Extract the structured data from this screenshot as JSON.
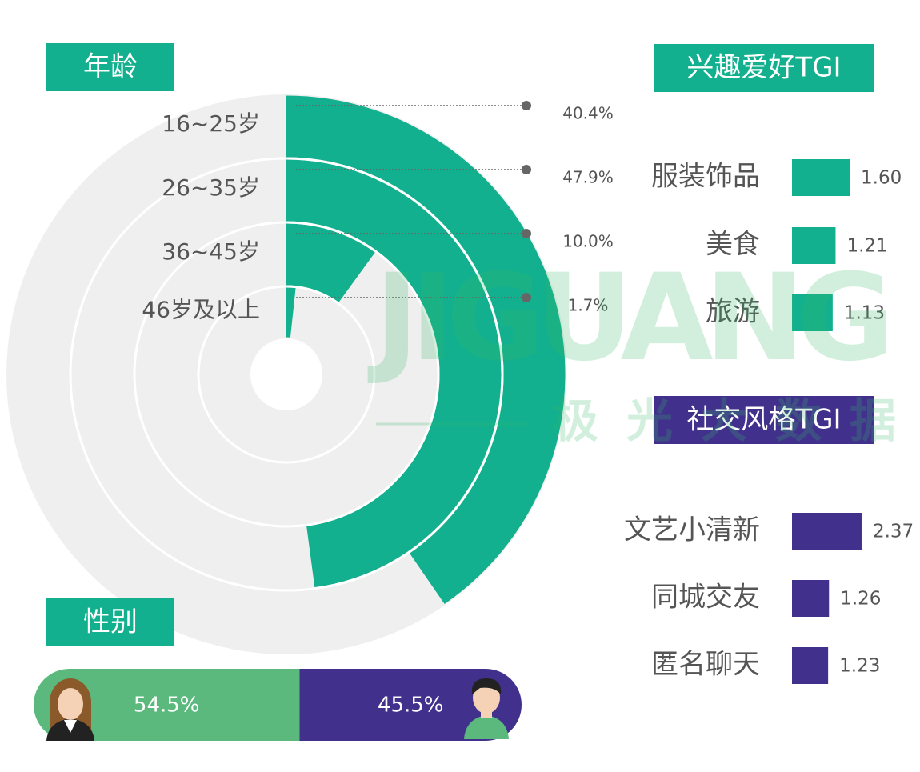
{
  "watermark": {
    "brand": "JIGUANG",
    "brand_cn": "极 光 大 数 据"
  },
  "chart_data": [
    {
      "type": "radial-bar",
      "title": "年龄",
      "categories": [
        "16~25岁",
        "26~35岁",
        "36~45岁",
        "46岁及以上"
      ],
      "values": [
        40.4,
        47.9,
        10.0,
        1.7
      ],
      "value_labels": [
        "40.4%",
        "47.9%",
        "10.0%",
        "1.7%"
      ],
      "ylim": [
        0,
        100
      ],
      "color": "#12b08e",
      "track_color": "#efefef"
    },
    {
      "type": "bar",
      "title": "兴趣爱好TGI",
      "categories": [
        "服装饰品",
        "美食",
        "旅游"
      ],
      "values": [
        1.6,
        1.21,
        1.13
      ],
      "value_labels": [
        "1.60",
        "1.21",
        "1.13"
      ],
      "color": "#12b08e"
    },
    {
      "type": "bar",
      "title": "社交风格TGI",
      "categories": [
        "文艺小清新",
        "同城交友",
        "匿名聊天"
      ],
      "values": [
        2.37,
        1.26,
        1.23
      ],
      "value_labels": [
        "2.37",
        "1.26",
        "1.23"
      ],
      "color": "#41318c"
    },
    {
      "type": "stacked-bar",
      "title": "性别",
      "values": [
        54.5,
        45.5
      ],
      "value_labels": [
        "54.5%",
        "45.5%"
      ],
      "colors": [
        "#5bb97d",
        "#41318c"
      ],
      "xlim": [
        0,
        100
      ]
    }
  ]
}
